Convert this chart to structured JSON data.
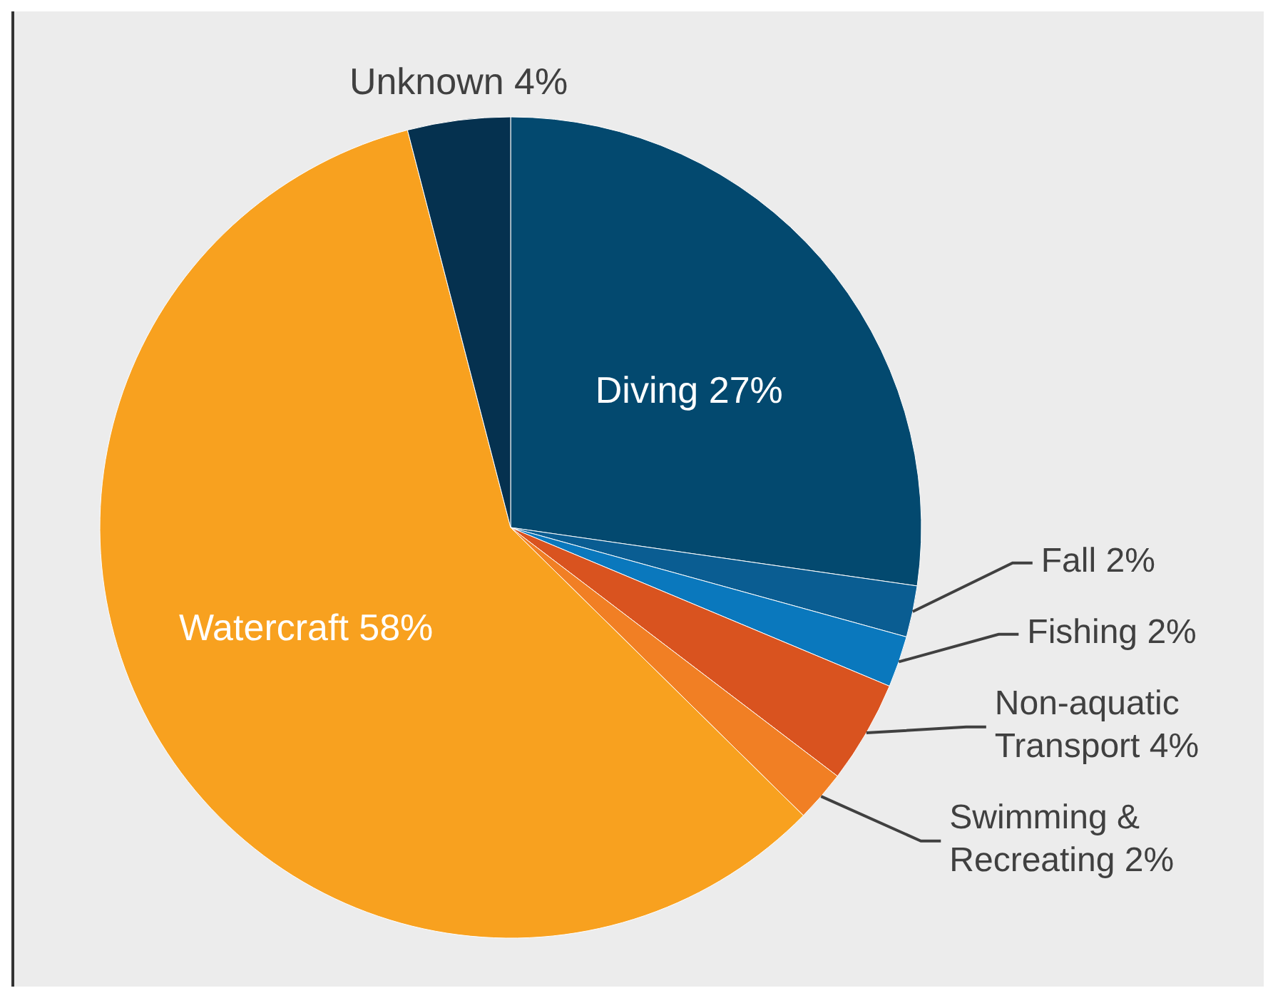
{
  "chart_data": {
    "type": "pie",
    "categories": [
      "Diving",
      "Fall",
      "Fishing",
      "Non-aquatic Transport",
      "Swimming & Recreating",
      "Watercraft",
      "Unknown"
    ],
    "values": [
      27,
      2,
      2,
      4,
      2,
      58,
      4
    ],
    "value_labels": [
      "27%",
      "2%",
      "2%",
      "4%",
      "2%",
      "58%",
      "4%"
    ],
    "colors": [
      "#03496f",
      "#0a5d92",
      "#0a78bd",
      "#d9531f",
      "#f17f24",
      "#f8a11f",
      "#05314f"
    ]
  }
}
